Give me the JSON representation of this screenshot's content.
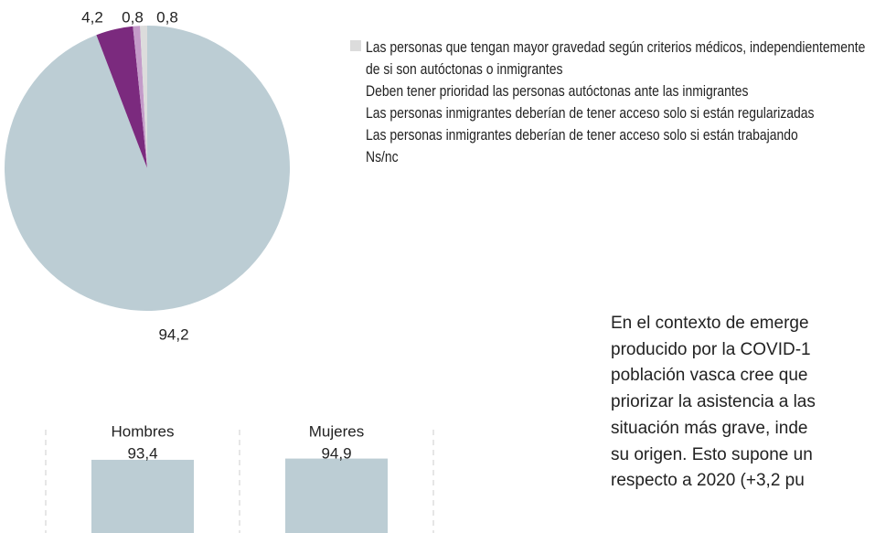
{
  "chart_data": [
    {
      "type": "pie",
      "categories": [
        "Las personas que tengan mayor gravedad según criterios médicos, independientemente de si son autóctonas o inmigrantes",
        "Deben tener prioridad las personas autóctonas ante las inmigrantes",
        "Las personas inmigrantes deberían de tener acceso solo si están regularizadas",
        "Las personas inmigrantes deberían de tener acceso solo si están trabajando",
        "Ns/nc"
      ],
      "values": [
        94.2,
        4.2,
        0.8,
        null,
        0.8
      ],
      "value_labels": [
        "94,2",
        "4,2",
        "0,8",
        null,
        "0,8"
      ],
      "colors": [
        "#bccdd4",
        "#7b2a7e",
        "#c49bc9",
        "#f0b4a0",
        "#dcdcdc"
      ]
    },
    {
      "type": "bar",
      "categories": [
        "Hombres",
        "Mujeres"
      ],
      "values": [
        93.4,
        94.9
      ],
      "value_labels": [
        "93,4",
        "94,9"
      ],
      "color": "#bccdd4",
      "ylim": [
        0,
        100
      ]
    }
  ],
  "text": {
    "lines": [
      "En el contexto de emerge",
      "producido por la COVID-1",
      "población vasca cree que",
      "priorizar la asistencia a las",
      "situación más grave, inde",
      "su origen. Esto supone un",
      "respecto a 2020 (+3,2 pu"
    ]
  }
}
